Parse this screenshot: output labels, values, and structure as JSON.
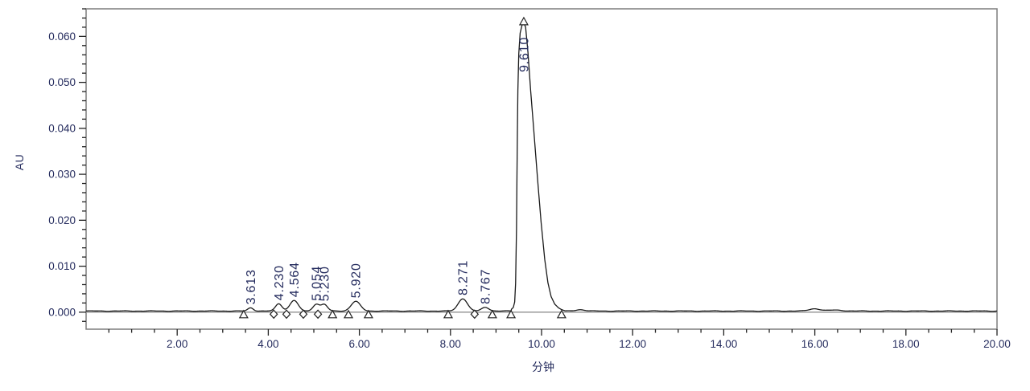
{
  "chart_data": {
    "type": "line",
    "title": "",
    "xlabel": "分钟",
    "ylabel": "AU",
    "xlim": [
      0,
      20
    ],
    "ylim": [
      -0.0037,
      0.066
    ],
    "grid": false,
    "legend": null,
    "colors": {
      "text": "#252c5e",
      "trace": "#1a1a1a",
      "frame": "#7d7d7d",
      "tick": "#222222",
      "zero_line": "#8f8f8f",
      "marker_stroke": "#222222",
      "marker_fill": "#ffffff",
      "background": "#ffffff"
    },
    "x_ticks": {
      "major": [
        2,
        4,
        6,
        8,
        10,
        12,
        14,
        16,
        18,
        20
      ],
      "major_labels": [
        "2.00",
        "4.00",
        "6.00",
        "8.00",
        "10.00",
        "12.00",
        "14.00",
        "16.00",
        "18.00",
        "20.00"
      ],
      "minor_step": 0.5
    },
    "y_ticks": {
      "major": [
        0.0,
        0.01,
        0.02,
        0.03,
        0.04,
        0.05,
        0.06
      ],
      "major_labels": [
        "0.000",
        "0.010",
        "0.020",
        "0.030",
        "0.040",
        "0.050",
        "0.060"
      ],
      "minor_step": 0.002
    },
    "baseline_au": 0.00025,
    "peaks": [
      {
        "retention_time": 3.613,
        "label": "3.613",
        "height_au": 0.0007,
        "sigma_min": 0.06
      },
      {
        "retention_time": 4.23,
        "label": "4.230",
        "height_au": 0.0016,
        "sigma_min": 0.07
      },
      {
        "retention_time": 4.564,
        "label": "4.564",
        "height_au": 0.0023,
        "sigma_min": 0.09
      },
      {
        "retention_time": 5.054,
        "label": "5.054",
        "height_au": 0.0015,
        "sigma_min": 0.07
      },
      {
        "retention_time": 5.23,
        "label": "5.230",
        "height_au": 0.0014,
        "sigma_min": 0.07
      },
      {
        "retention_time": 5.92,
        "label": "5.920",
        "height_au": 0.0021,
        "sigma_min": 0.1
      },
      {
        "retention_time": 8.271,
        "label": "8.271",
        "height_au": 0.0027,
        "sigma_min": 0.1
      },
      {
        "retention_time": 8.767,
        "label": "8.767",
        "height_au": 0.0008,
        "sigma_min": 0.08
      },
      {
        "retention_time": 9.61,
        "label": "9.610",
        "height_au": 0.0628,
        "use_shape": true
      }
    ],
    "main_peak_shape": [
      [
        9.33,
        0.0003
      ],
      [
        9.38,
        0.0008
      ],
      [
        9.41,
        0.002
      ],
      [
        9.43,
        0.006
      ],
      [
        9.45,
        0.018
      ],
      [
        9.465,
        0.035
      ],
      [
        9.48,
        0.048
      ],
      [
        9.5,
        0.056
      ],
      [
        9.53,
        0.0605
      ],
      [
        9.57,
        0.0622
      ],
      [
        9.61,
        0.0628
      ],
      [
        9.65,
        0.0618
      ],
      [
        9.7,
        0.0565
      ],
      [
        9.76,
        0.048
      ],
      [
        9.83,
        0.0392
      ],
      [
        9.91,
        0.029
      ],
      [
        9.99,
        0.0193
      ],
      [
        10.07,
        0.0112
      ],
      [
        10.14,
        0.0062
      ],
      [
        10.21,
        0.0032
      ],
      [
        10.29,
        0.0015
      ],
      [
        10.37,
        0.0007
      ],
      [
        10.44,
        0.0003
      ],
      [
        10.52,
        0.0
      ]
    ],
    "unlabeled_bumps": [
      {
        "retention_time": 10.85,
        "height_au": 0.0003,
        "sigma_min": 0.1
      },
      {
        "retention_time": 16.0,
        "height_au": 0.0005,
        "sigma_min": 0.12
      },
      {
        "retention_time": 16.45,
        "height_au": 0.0002,
        "sigma_min": 0.15
      }
    ],
    "integration_markers": [
      {
        "time": 3.46,
        "marker": "triangle"
      },
      {
        "time": 4.12,
        "marker": "diamond"
      },
      {
        "time": 4.4,
        "marker": "diamond"
      },
      {
        "time": 4.77,
        "marker": "diamond"
      },
      {
        "time": 5.09,
        "marker": "diamond"
      },
      {
        "time": 5.41,
        "marker": "triangle"
      },
      {
        "time": 5.76,
        "marker": "triangle"
      },
      {
        "time": 6.2,
        "marker": "triangle"
      },
      {
        "time": 7.95,
        "marker": "triangle"
      },
      {
        "time": 8.53,
        "marker": "diamond"
      },
      {
        "time": 8.92,
        "marker": "triangle"
      },
      {
        "time": 9.33,
        "marker": "triangle"
      },
      {
        "time": 10.44,
        "marker": "triangle"
      }
    ],
    "apex_marker": {
      "time": 9.61,
      "marker": "triangle"
    }
  }
}
